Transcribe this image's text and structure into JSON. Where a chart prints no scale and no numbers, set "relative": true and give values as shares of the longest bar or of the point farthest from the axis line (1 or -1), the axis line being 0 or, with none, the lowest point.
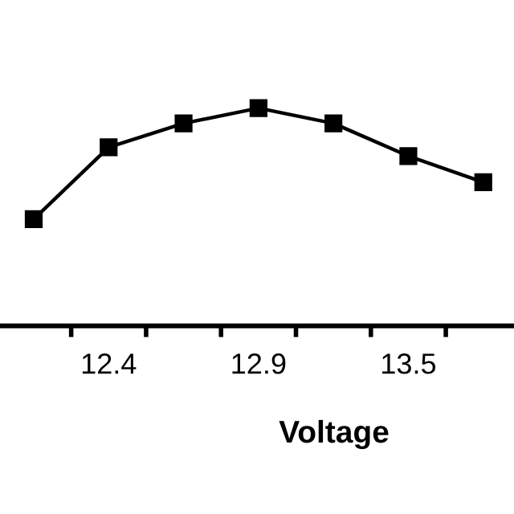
{
  "chart_data": {
    "type": "line",
    "relative": true,
    "xlabel": "Voltage",
    "categories": [
      null,
      "12.4",
      null,
      "12.9",
      null,
      "13.5",
      null
    ],
    "series": [
      {
        "color": "#000000",
        "values": [
          0.49,
          0.82,
          0.93,
          1.0,
          0.93,
          0.78,
          0.66
        ]
      }
    ],
    "marker": "square",
    "line_style": "solid",
    "grid": false,
    "legend": false
  }
}
